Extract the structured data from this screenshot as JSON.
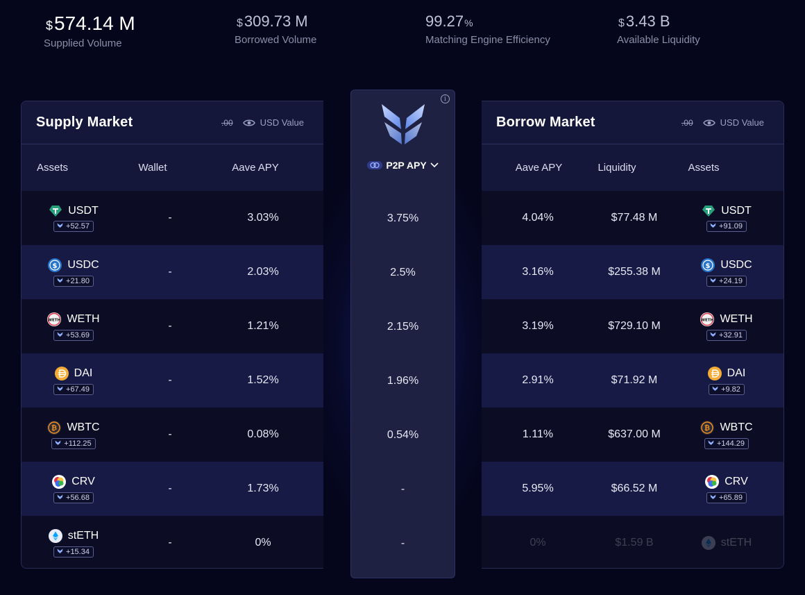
{
  "stats": {
    "supplied": {
      "currency": "$",
      "value": "574.14 M",
      "label": "Supplied Volume"
    },
    "borrowed": {
      "currency": "$",
      "value": "309.73 M",
      "label": "Borrowed Volume"
    },
    "efficiency": {
      "value": "99.27",
      "unit": "%",
      "label": "Matching Engine Efficiency"
    },
    "liquidity": {
      "currency": "$",
      "value": "3.43 B",
      "label": "Available Liquidity"
    }
  },
  "supply": {
    "title": "Supply Market",
    "decimals": ".00",
    "usd_label": "USD Value",
    "columns": {
      "assets": "Assets",
      "wallet": "Wallet",
      "apy": "Aave APY"
    },
    "rows": [
      {
        "asset": "USDT",
        "icon": "usdt-icon",
        "badge": "+52.57",
        "wallet": "-",
        "apy": "3.03%"
      },
      {
        "asset": "USDC",
        "icon": "usdc-icon",
        "badge": "+21.80",
        "wallet": "-",
        "apy": "2.03%"
      },
      {
        "asset": "WETH",
        "icon": "weth-icon",
        "badge": "+53.69",
        "wallet": "-",
        "apy": "1.21%"
      },
      {
        "asset": "DAI",
        "icon": "dai-icon",
        "badge": "+67.49",
        "wallet": "-",
        "apy": "1.52%"
      },
      {
        "asset": "WBTC",
        "icon": "wbtc-icon",
        "badge": "+112.25",
        "wallet": "-",
        "apy": "0.08%"
      },
      {
        "asset": "CRV",
        "icon": "crv-icon",
        "badge": "+56.68",
        "wallet": "-",
        "apy": "1.73%"
      },
      {
        "asset": "stETH",
        "icon": "steth-icon",
        "badge": "+15.34",
        "wallet": "-",
        "apy": "0%"
      }
    ]
  },
  "p2p": {
    "label": "P2P APY",
    "values": [
      "3.75%",
      "2.5%",
      "2.15%",
      "1.96%",
      "0.54%",
      "-",
      "-"
    ]
  },
  "borrow": {
    "title": "Borrow Market",
    "decimals": ".00",
    "usd_label": "USD Value",
    "columns": {
      "apy": "Aave APY",
      "liquidity": "Liquidity",
      "assets": "Assets"
    },
    "rows": [
      {
        "asset": "USDT",
        "icon": "usdt-icon",
        "badge": "+91.09",
        "apy": "4.04%",
        "liquidity": "$77.48 M"
      },
      {
        "asset": "USDC",
        "icon": "usdc-icon",
        "badge": "+24.19",
        "apy": "3.16%",
        "liquidity": "$255.38 M"
      },
      {
        "asset": "WETH",
        "icon": "weth-icon",
        "badge": "+32.91",
        "apy": "3.19%",
        "liquidity": "$729.10 M"
      },
      {
        "asset": "DAI",
        "icon": "dai-icon",
        "badge": "+9.82",
        "apy": "2.91%",
        "liquidity": "$71.92 M"
      },
      {
        "asset": "WBTC",
        "icon": "wbtc-icon",
        "badge": "+144.29",
        "apy": "1.11%",
        "liquidity": "$637.00 M"
      },
      {
        "asset": "CRV",
        "icon": "crv-icon",
        "badge": "+65.89",
        "apy": "5.95%",
        "liquidity": "$66.52 M"
      },
      {
        "asset": "stETH",
        "icon": "steth-icon",
        "badge": "",
        "apy": "0%",
        "liquidity": "$1.59 B",
        "disabled": true
      }
    ]
  },
  "colors": {
    "background": "#05061c",
    "panel": "#0f1130",
    "accent": "#4a7bff"
  }
}
